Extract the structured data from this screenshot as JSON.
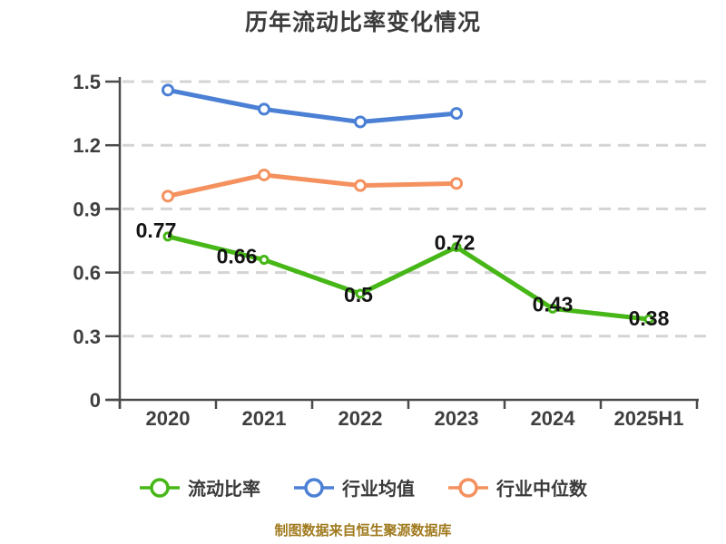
{
  "title": "历年流动比率变化情况",
  "caption": "制图数据来自恒生聚源数据库",
  "chart_data": {
    "type": "line",
    "title": "历年流动比率变化情况",
    "categories": [
      "2020",
      "2021",
      "2022",
      "2023",
      "2024",
      "2025H1"
    ],
    "series": [
      {
        "name": "流动比率",
        "color": "#46b717",
        "values": [
          0.77,
          0.66,
          0.5,
          0.72,
          0.43,
          0.38
        ],
        "show_labels": true,
        "label_offsets": [
          [
            -13,
            -7
          ],
          [
            -30,
            -4
          ],
          [
            -2,
            1
          ],
          [
            -2,
            -5
          ],
          [
            0,
            -5
          ],
          [
            0,
            -1
          ]
        ]
      },
      {
        "name": "行业均值",
        "color": "#4b80d5",
        "values": [
          1.46,
          1.37,
          1.31,
          1.35,
          null,
          null
        ],
        "show_labels": false
      },
      {
        "name": "行业中位数",
        "color": "#f4915e",
        "values": [
          0.96,
          1.06,
          1.01,
          1.02,
          null,
          null
        ],
        "show_labels": false
      }
    ],
    "ylim": [
      0,
      1.5
    ],
    "yticks": [
      0,
      0.3,
      0.6,
      0.9,
      1.2,
      1.5
    ],
    "xlabel": "",
    "ylabel": "",
    "grid": "horizontal-dashed",
    "legend_position": "bottom"
  },
  "colors": {
    "axis": "#4a4a4a",
    "grid": "#d4d4d4",
    "tick_label": "#3f3f3f",
    "title": "#3c3c3c",
    "data_label": "#141414",
    "legend_text": "#3a3a3a",
    "caption": "#a07a1e",
    "marker_fill": "#ffffff"
  }
}
